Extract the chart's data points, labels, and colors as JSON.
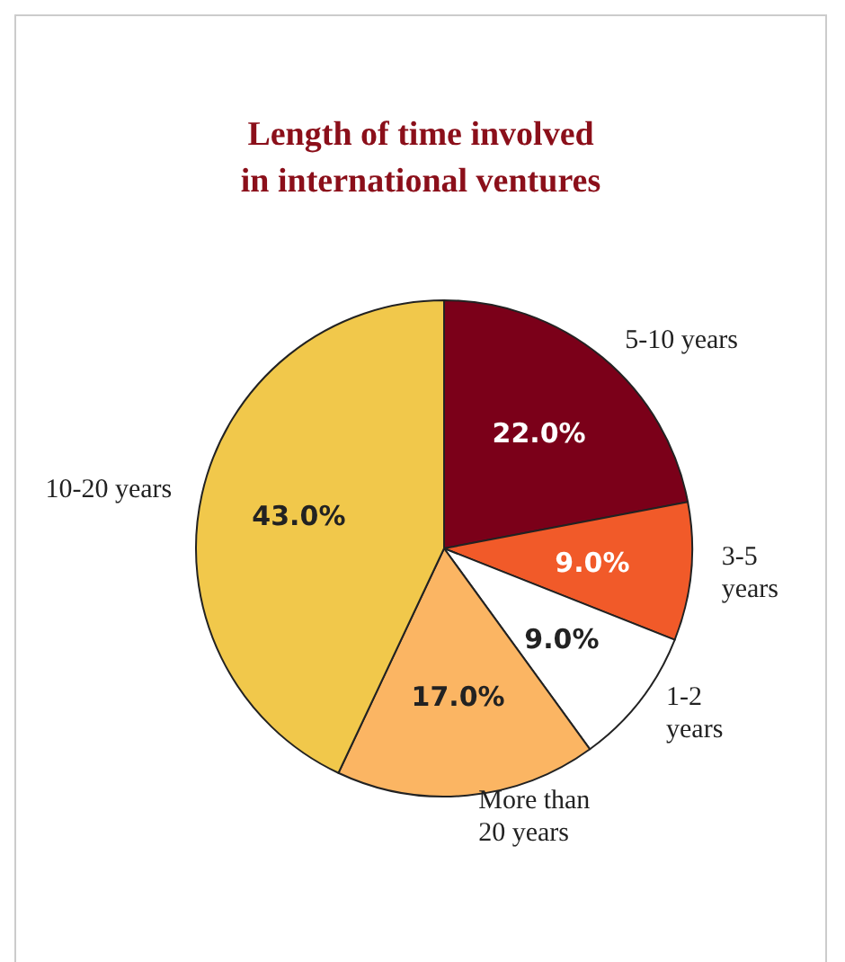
{
  "chart_data": {
    "type": "pie",
    "title": "Length of time involved\nin international ventures",
    "categories": [
      "5-10 years",
      "3-5 years",
      "1-2 years",
      "More than 20 years",
      "10-20 years"
    ],
    "values": [
      22,
      9,
      9,
      17,
      43
    ],
    "value_labels": [
      "22.0%",
      "9.0%",
      "9.0%",
      "17.0%",
      "43.0%"
    ],
    "colors": [
      "#7b0019",
      "#f15a29",
      "#ffffff",
      "#fbb563",
      "#f1c84b"
    ],
    "legend": false
  }
}
